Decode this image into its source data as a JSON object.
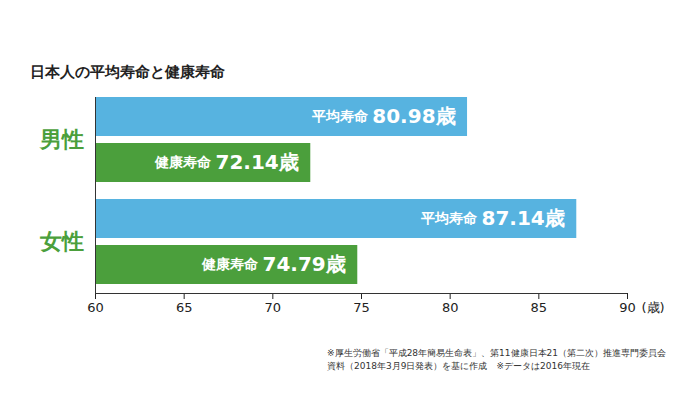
{
  "chart_data": {
    "type": "bar",
    "title": "日本人の平均寿命と健康寿命",
    "orientation": "horizontal",
    "categories": [
      "男性",
      "女性"
    ],
    "series": [
      {
        "name": "平均寿命",
        "color": "#57b3e0",
        "values": [
          80.98,
          87.14
        ],
        "value_labels": [
          "80.98歳",
          "87.14歳"
        ]
      },
      {
        "name": "健康寿命",
        "color": "#4b9f3c",
        "values": [
          72.14,
          74.79
        ],
        "value_labels": [
          "72.14歳",
          "74.79歳"
        ]
      }
    ],
    "xlim": [
      60,
      90
    ],
    "xticks": [
      60,
      65,
      70,
      75,
      80,
      85,
      90
    ],
    "xlabel": "(歳)",
    "data_labels": true,
    "grid": false,
    "notes": [
      "※厚生労働省「平成28年簡易生命表」、第11健康日本21（第二次）推進専門委員会",
      "資料（2018年3月9日発表）を基に作成　※データは2016年現在"
    ]
  }
}
